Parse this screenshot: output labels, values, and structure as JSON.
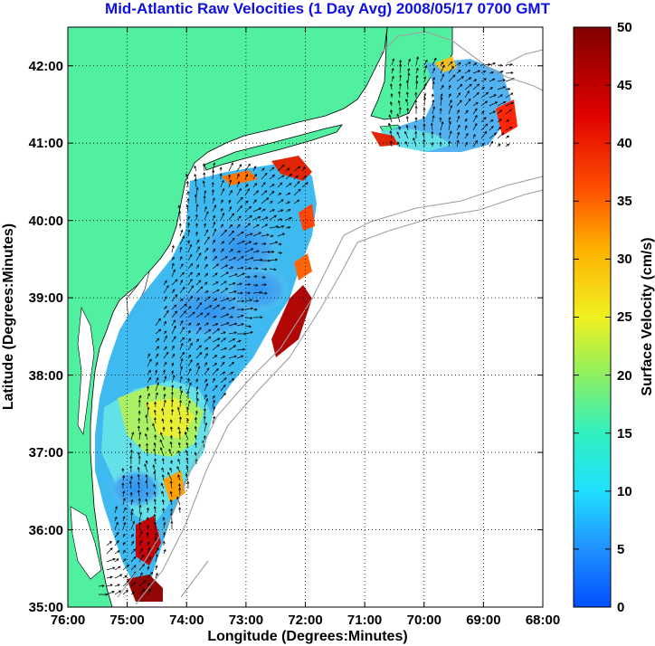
{
  "title": "Mid-Atlantic Raw Velocities (1 Day Avg) 2008/05/17 0700 GMT",
  "x_axis": {
    "label": "Longitude (Degrees:Minutes)",
    "ticks": [
      "76:00",
      "75:00",
      "74:00",
      "73:00",
      "72:00",
      "71:00",
      "70:00",
      "69:00",
      "68:00"
    ]
  },
  "y_axis": {
    "label": "Latitude (Degrees:Minutes)",
    "ticks": [
      "35:00",
      "36:00",
      "37:00",
      "38:00",
      "39:00",
      "40:00",
      "41:00",
      "42:00"
    ]
  },
  "colorbar": {
    "label": "Surface Velocity (cm/s)",
    "ticks": [
      "0",
      "5",
      "10",
      "15",
      "20",
      "25",
      "30",
      "35",
      "40",
      "45",
      "50"
    ],
    "range": [
      0,
      50
    ],
    "colors": [
      "#0050ff",
      "#2090ff",
      "#20e0ff",
      "#30f0c0",
      "#a0f050",
      "#f0f020",
      "#ffb000",
      "#ff5000",
      "#e00000",
      "#800000"
    ]
  },
  "map": {
    "lon_range": [
      -76,
      -68
    ],
    "lat_range": [
      35,
      42.5
    ],
    "land_color": "#50f0a0",
    "grid": "dotted",
    "contour_color": "#a0a0a0"
  }
}
